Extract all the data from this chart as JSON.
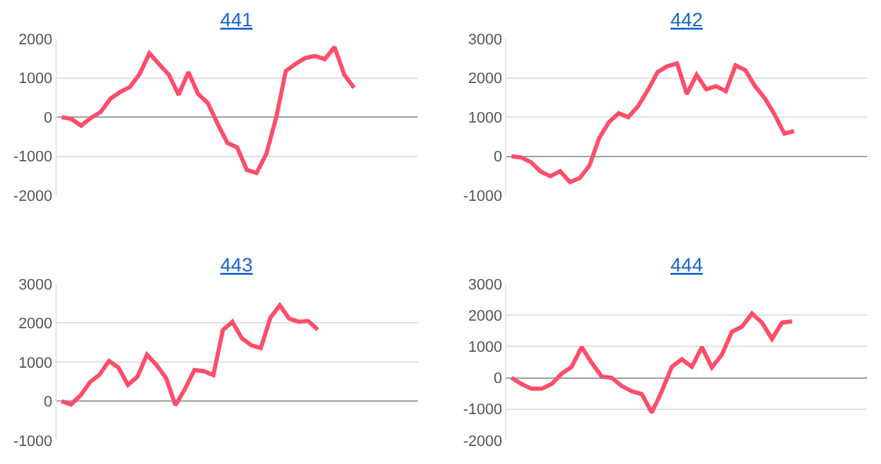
{
  "chart_data": [
    {
      "type": "line",
      "title": "441",
      "categories": [
        null,
        null,
        null,
        null,
        null,
        null,
        null,
        null,
        null,
        null,
        null,
        null,
        null,
        null,
        null,
        null,
        null,
        null,
        null,
        null,
        null,
        null,
        null,
        null,
        null,
        null,
        null,
        null,
        null,
        null,
        null,
        null,
        null,
        null,
        null,
        null,
        null
      ],
      "series": [
        {
          "color": "#ff4d6a",
          "values": [
            0,
            -50,
            -220,
            -20,
            130,
            470,
            640,
            770,
            1100,
            1630,
            1350,
            1080,
            570,
            1150,
            590,
            360,
            -170,
            -660,
            -770,
            -1350,
            -1430,
            -940,
            -20,
            1180,
            1360,
            1510,
            1560,
            1480,
            1790,
            1080,
            750,
            null,
            null,
            null,
            null,
            null,
            null
          ]
        }
      ],
      "ylim": [
        -2000,
        2000
      ],
      "yticks": [
        -2000,
        -1000,
        0,
        1000,
        2000
      ],
      "grid": "y",
      "tick_labels": "y"
    },
    {
      "type": "line",
      "title": "442",
      "categories": [
        null,
        null,
        null,
        null,
        null,
        null,
        null,
        null,
        null,
        null,
        null,
        null,
        null,
        null,
        null,
        null,
        null,
        null,
        null,
        null,
        null,
        null,
        null,
        null,
        null,
        null,
        null,
        null,
        null,
        null,
        null,
        null,
        null,
        null,
        null,
        null,
        null
      ],
      "series": [
        {
          "color": "#ff4d6a",
          "values": [
            0,
            -30,
            -150,
            -390,
            -510,
            -380,
            -660,
            -560,
            -240,
            460,
            870,
            1100,
            1000,
            1280,
            1690,
            2150,
            2300,
            2370,
            1590,
            2080,
            1710,
            1790,
            1660,
            2320,
            2200,
            1790,
            1480,
            1070,
            580,
            640,
            null,
            null,
            null,
            null,
            null,
            null,
            null
          ]
        }
      ],
      "ylim": [
        -1000,
        3000
      ],
      "yticks": [
        -1000,
        0,
        1000,
        2000,
        3000
      ],
      "grid": "y",
      "tick_labels": "y"
    },
    {
      "type": "line",
      "title": "443",
      "categories": [
        null,
        null,
        null,
        null,
        null,
        null,
        null,
        null,
        null,
        null,
        null,
        null,
        null,
        null,
        null,
        null,
        null,
        null,
        null,
        null,
        null,
        null,
        null,
        null,
        null,
        null,
        null,
        null,
        null,
        null,
        null,
        null,
        null,
        null,
        null,
        null,
        null,
        null
      ],
      "series": [
        {
          "color": "#ff4d6a",
          "values": [
            0,
            -80,
            150,
            490,
            680,
            1030,
            860,
            420,
            630,
            1190,
            930,
            600,
            -100,
            310,
            800,
            770,
            670,
            1820,
            2030,
            1610,
            1430,
            1360,
            2130,
            2450,
            2110,
            2030,
            2050,
            1830,
            null,
            null,
            null,
            null,
            null,
            null,
            null,
            null,
            null,
            null
          ]
        }
      ],
      "ylim": [
        -1000,
        3000
      ],
      "yticks": [
        -1000,
        0,
        1000,
        2000,
        3000
      ],
      "grid": "y",
      "tick_labels": "y"
    },
    {
      "type": "line",
      "title": "444",
      "categories": [
        null,
        null,
        null,
        null,
        null,
        null,
        null,
        null,
        null,
        null,
        null,
        null,
        null,
        null,
        null,
        null,
        null,
        null,
        null,
        null,
        null,
        null,
        null,
        null,
        null,
        null,
        null,
        null,
        null,
        null,
        null,
        null,
        null,
        null,
        null,
        null
      ],
      "series": [
        {
          "color": "#ff4d6a",
          "values": [
            0,
            -200,
            -350,
            -350,
            -200,
            130,
            350,
            980,
            480,
            40,
            0,
            -260,
            -430,
            -520,
            -1110,
            -430,
            350,
            590,
            350,
            980,
            330,
            740,
            1470,
            1630,
            2050,
            1760,
            1240,
            1760,
            1800,
            null,
            null,
            null,
            null,
            null,
            null,
            null
          ]
        }
      ],
      "ylim": [
        -2000,
        3000
      ],
      "yticks": [
        -2000,
        -1000,
        0,
        1000,
        2000,
        3000
      ],
      "grid": "y",
      "tick_labels": "y"
    }
  ]
}
